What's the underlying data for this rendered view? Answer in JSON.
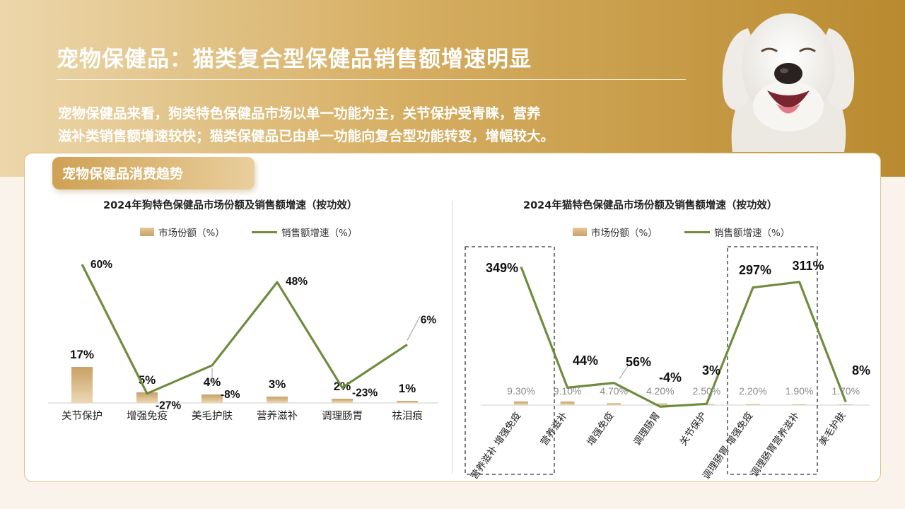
{
  "header": {
    "title": "宠物保健品：猫类复合型保健品销售额增速明显",
    "intro_line1": "宠物保健品来看，狗类特色保健品市场以单一功能为主，关节保护受青睐，营养",
    "intro_line2": "滋补类销售额增速较快；猫类保健品已由单一功能向复合型功能转变，增幅较大。"
  },
  "panel": {
    "title": "宠物保健品消费趋势"
  },
  "colors": {
    "bar": "#d4b079",
    "line": "#6f8c3e",
    "band_start": "#ecd7ab",
    "band_end": "#b98a2f",
    "panel_border": "#e1bf86",
    "title_text": "#ffffff"
  },
  "photo": {
    "icon": "smiling-white-dog"
  },
  "chart_data": [
    {
      "type": "bar",
      "title": "2024年狗特色保健品市场份额及销售额增速（按功效）",
      "categories": [
        "关节保护",
        "增强免疫",
        "美毛护肤",
        "营养滋补",
        "调理肠胃",
        "祛泪痕"
      ],
      "series": [
        {
          "name": "市场份额（%）",
          "type": "bar",
          "values": [
            17,
            5,
            4,
            3,
            2,
            1
          ],
          "labels": [
            "17%",
            "5%",
            "4%",
            "3%",
            "2%",
            "1%"
          ]
        },
        {
          "name": "销售额增速（%）",
          "type": "line",
          "values": [
            60,
            -27,
            -8,
            48,
            -23,
            6
          ],
          "labels": [
            "60%",
            "-27%",
            "-8%",
            "48%",
            "-23%",
            "6%"
          ]
        }
      ],
      "legend": "top-center",
      "grid": false
    },
    {
      "type": "bar",
      "title": "2024年猫特色保健品市场份额及销售额增速（按功效）",
      "categories": [
        "营养滋补 增强免疫",
        "营养滋补",
        "增强免疫",
        "调理肠胃",
        "关节保护",
        "调理肠胃 增强免疫",
        "调理肠胃营养滋补",
        "美毛护肤"
      ],
      "series": [
        {
          "name": "市场份额（%）",
          "type": "bar",
          "values": [
            9.3,
            9.1,
            4.7,
            4.2,
            2.5,
            2.2,
            1.9,
            1.7
          ],
          "labels": [
            "9.30%",
            "9.10%",
            "4.70%",
            "4.20%",
            "2.50%",
            "2.20%",
            "1.90%",
            "1.70%"
          ]
        },
        {
          "name": "销售额增速（%）",
          "type": "line",
          "values": [
            349,
            44,
            56,
            -4,
            3,
            297,
            311,
            8
          ],
          "labels": [
            "349%",
            "44%",
            "56%",
            "-4%",
            "3%",
            "297%",
            "311%",
            "8%"
          ]
        }
      ],
      "legend": "top-center",
      "grid": false
    }
  ]
}
